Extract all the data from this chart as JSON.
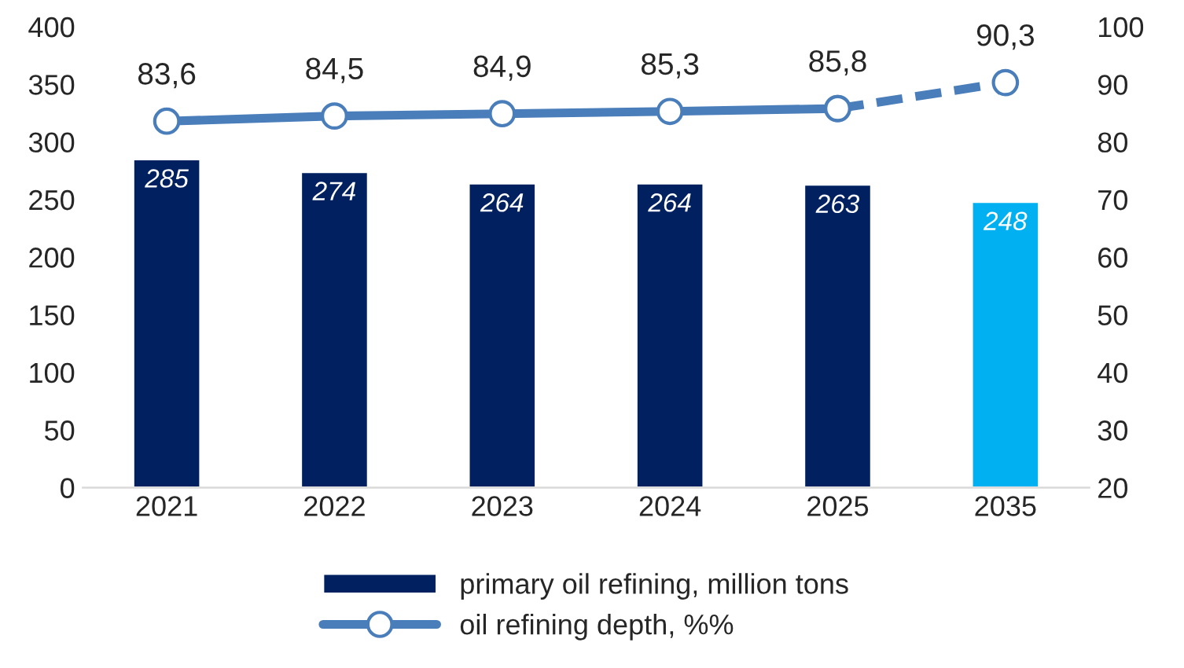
{
  "chart_data": {
    "type": "bar",
    "categories": [
      "2021",
      "2022",
      "2023",
      "2024",
      "2025",
      "2035"
    ],
    "ylim": [
      0,
      400
    ],
    "yticks": [
      0,
      50,
      100,
      150,
      200,
      250,
      300,
      350,
      400
    ],
    "y2lim": [
      20,
      100
    ],
    "y2ticks": [
      20,
      30,
      40,
      50,
      60,
      70,
      80,
      90,
      100
    ],
    "grid": false,
    "legend": "bottom",
    "data_labels": true,
    "series": [
      {
        "name": "primary oil refining, million tons",
        "color": "#002060",
        "colors": [
          "#002060",
          "#002060",
          "#002060",
          "#002060",
          "#002060",
          "#00b0f0"
        ],
        "values": [
          285,
          274,
          264,
          264,
          263,
          248
        ]
      },
      {
        "type": "line",
        "axis": "y2",
        "name": "oil refining depth, %%",
        "color": "#4a7ebb",
        "marker": "circle",
        "line_style": "solid",
        "values": [
          83.6,
          84.5,
          84.9,
          85.3,
          85.8,
          null
        ],
        "value_labels": [
          "83,6",
          "84,5",
          "84,9",
          "85,3",
          "85,8",
          null
        ]
      },
      {
        "type": "line",
        "axis": "y2",
        "color": "#4a7ebb",
        "marker": "circle",
        "line_style": "dashed",
        "values": [
          null,
          null,
          null,
          null,
          85.8,
          90.3
        ],
        "value_labels": [
          null,
          null,
          null,
          null,
          null,
          "90,3"
        ]
      }
    ]
  }
}
